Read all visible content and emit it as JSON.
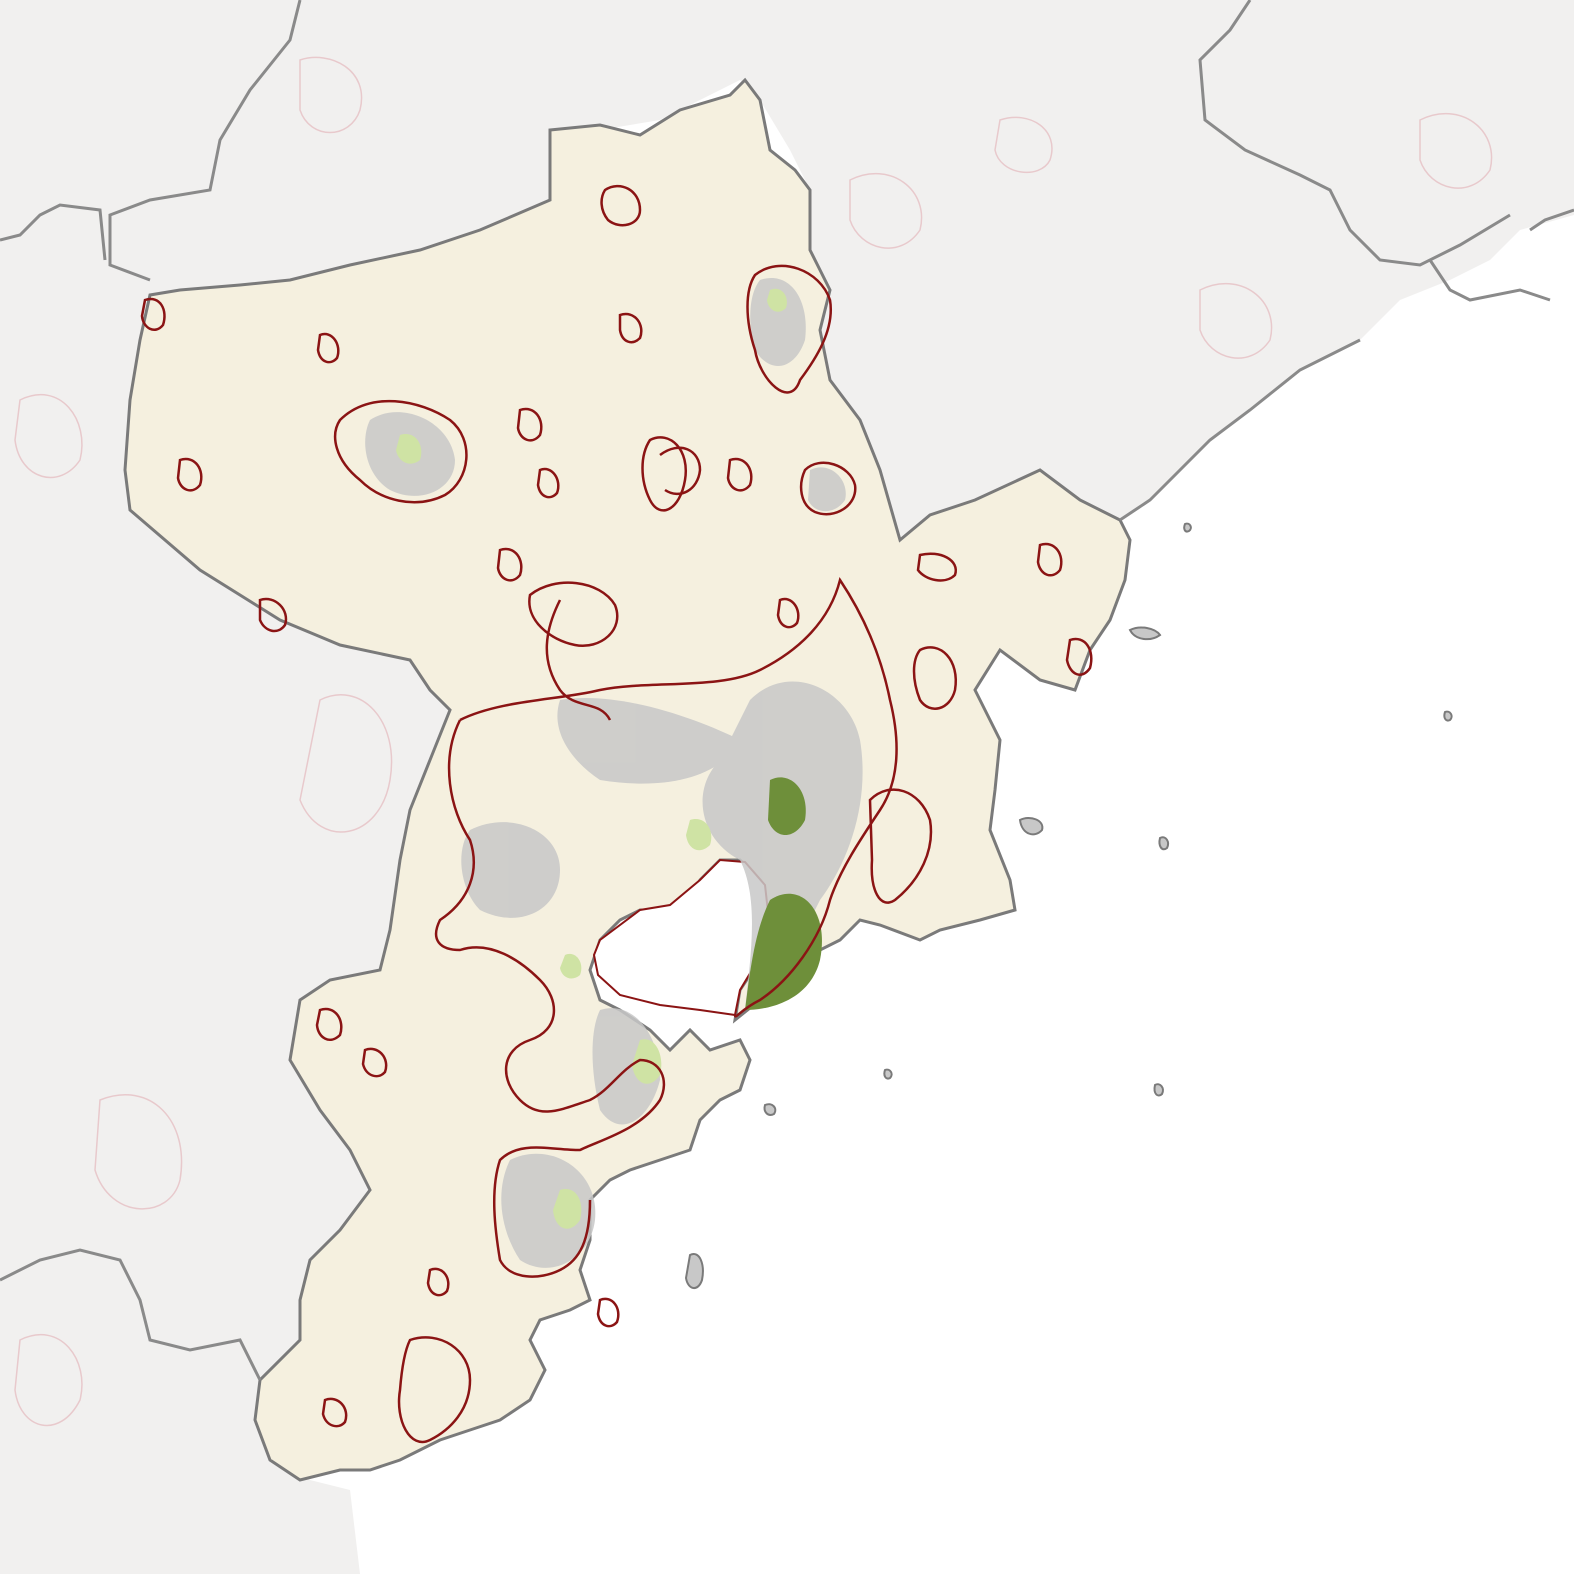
{
  "map": {
    "type": "choropleth-style region map",
    "labels_visible": false,
    "layers": [
      {
        "name": "background-land",
        "color": "#f1f0ef"
      },
      {
        "name": "sea",
        "color": "#ffffff"
      },
      {
        "name": "study-region-fill",
        "color": "#f5f0df"
      },
      {
        "name": "admin-boundary-outline",
        "color": "#7a7a7a"
      },
      {
        "name": "built-up-area",
        "color": "#c8c8c8"
      },
      {
        "name": "urban-cluster-outline",
        "color": "#8b1414"
      },
      {
        "name": "green-space",
        "color": "#6e8f3a"
      },
      {
        "name": "light-green-space",
        "color": "#cfe3a4"
      },
      {
        "name": "faint-background-cluster-outline",
        "color": "#e8c9cc"
      }
    ]
  }
}
